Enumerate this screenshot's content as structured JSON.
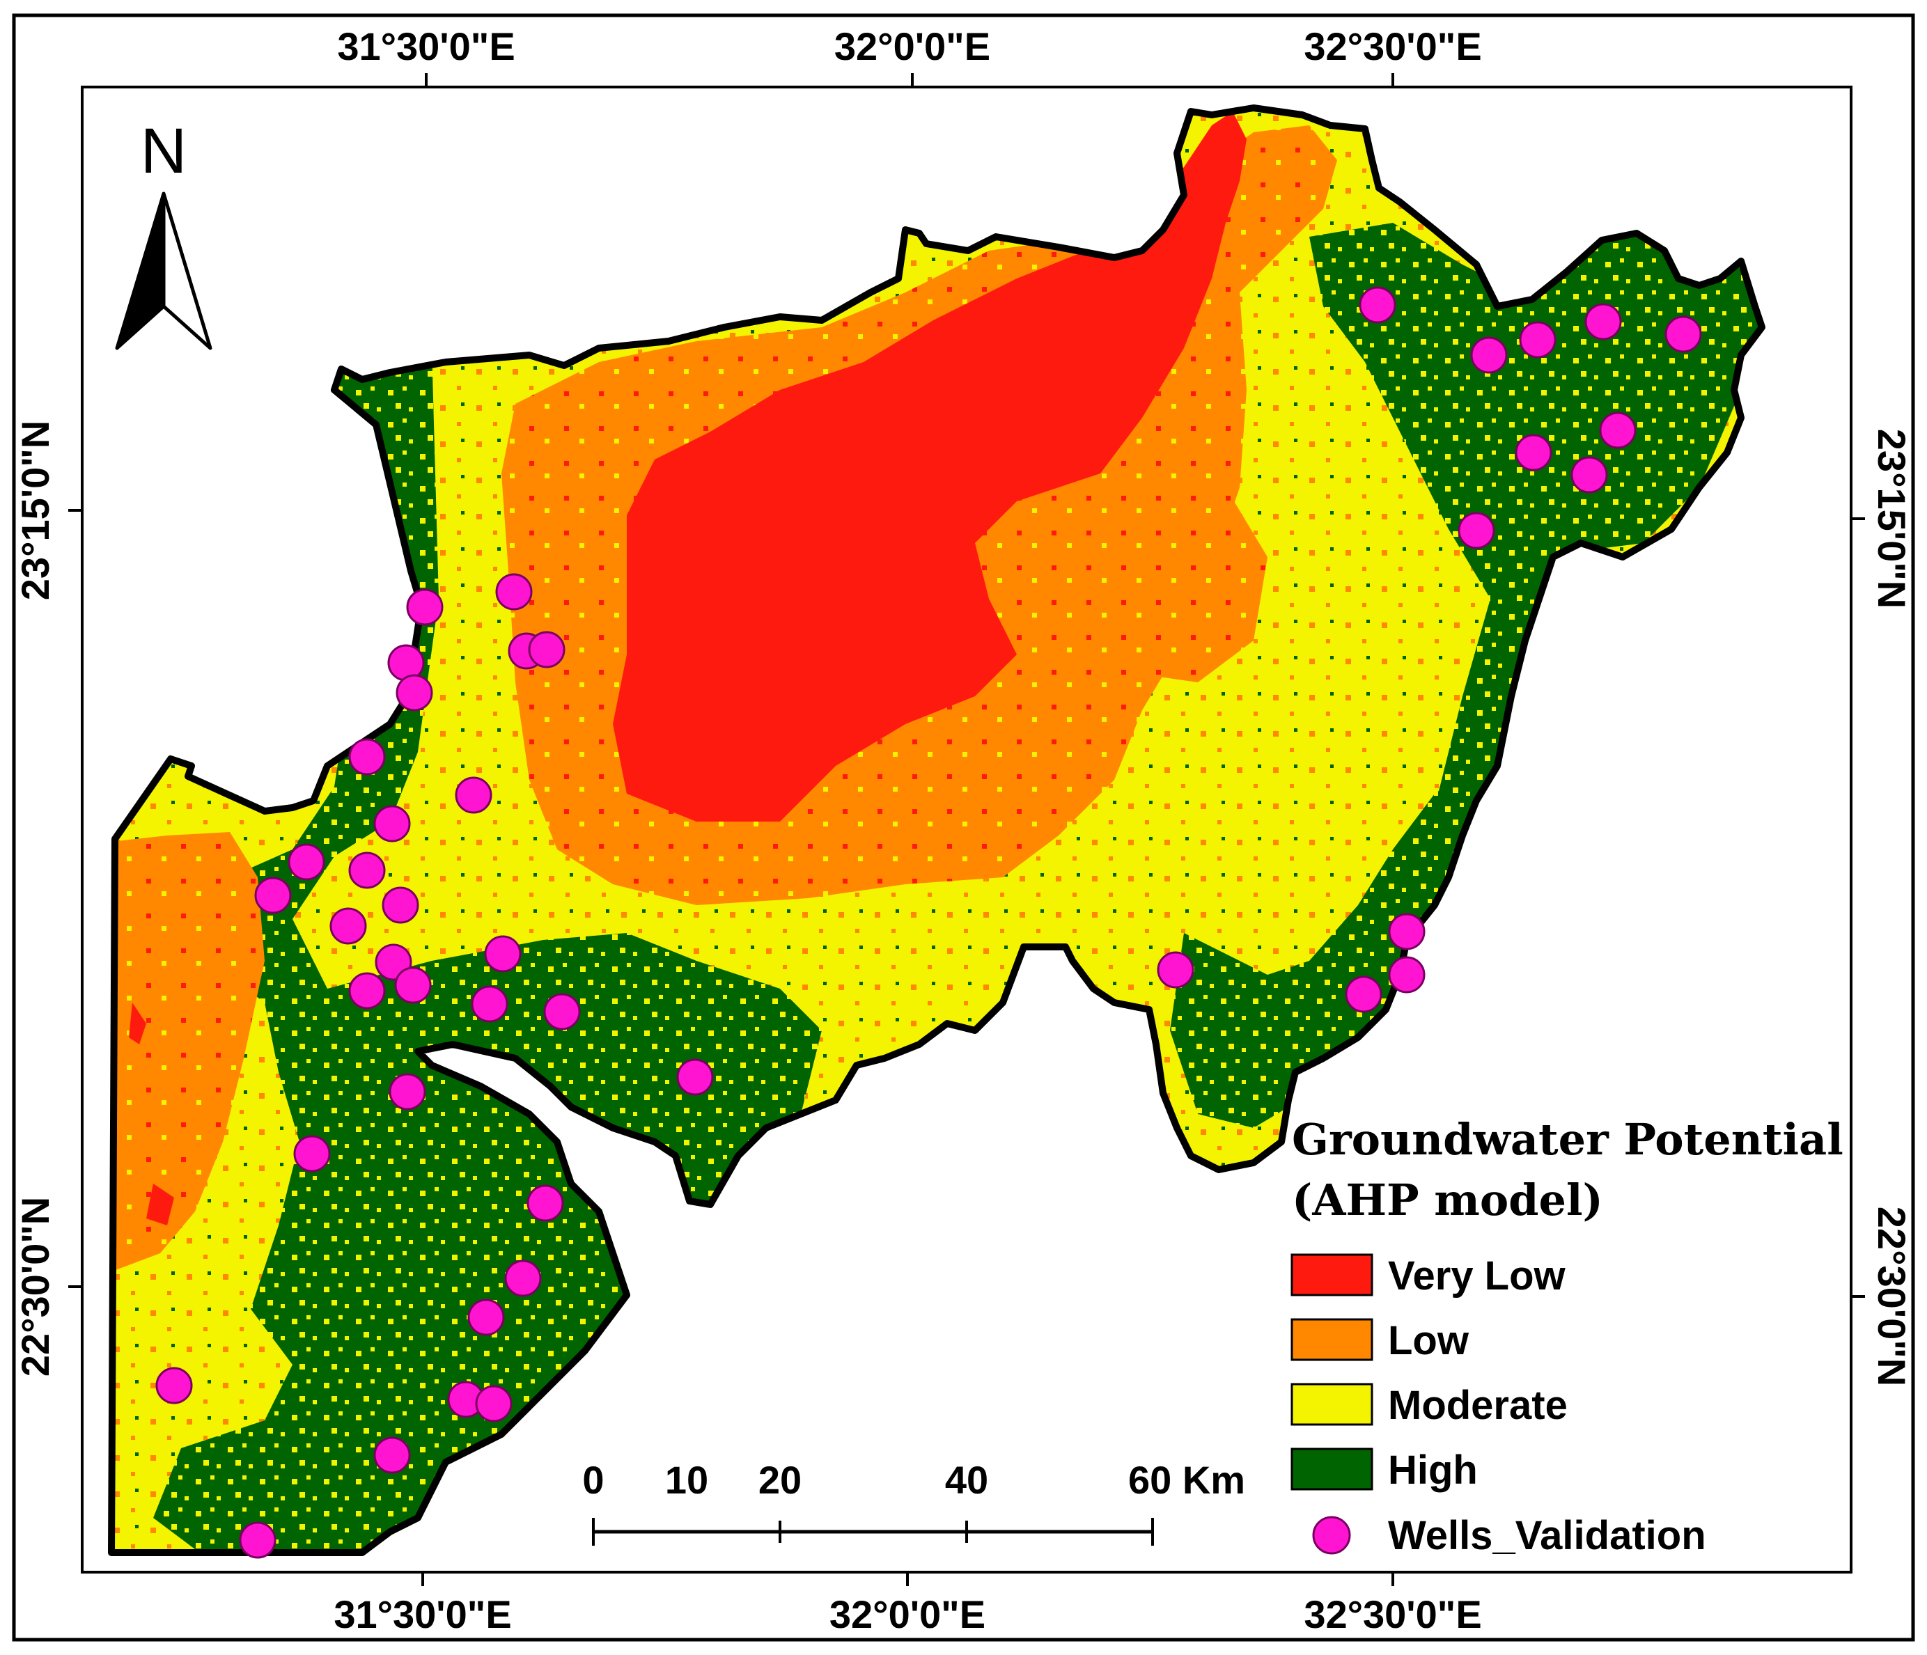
{
  "map": {
    "top_labels": [
      "31°30'0\"E",
      "32°0'0\"E",
      "32°30'0\"E"
    ],
    "bottom_labels": [
      "31°30'0\"E",
      "32°0'0\"E",
      "32°30'0\"E"
    ],
    "left_labels": [
      "23°15'0\"N",
      "22°30'0\"N"
    ],
    "right_labels": [
      "23°15'0\"N",
      "22°30'0\"N"
    ],
    "north_arrow": {
      "label": "N",
      "icon": "north-arrow-icon"
    }
  },
  "scale_bar": {
    "ticks": [
      "0",
      "10",
      "20",
      "40",
      "60 Km"
    ]
  },
  "legend": {
    "title_line1": "Groundwater Potential",
    "title_line2": "(AHP model)",
    "items": [
      {
        "label": "Very Low",
        "color": "#ff1a10"
      },
      {
        "label": "Low",
        "color": "#ff8800"
      },
      {
        "label": "Moderate",
        "color": "#f4f300"
      },
      {
        "label": "High",
        "color": "#006400"
      },
      {
        "label": "Wells_Validation",
        "color": "#ff14d2",
        "icon": "well-point-icon"
      }
    ]
  },
  "colors": {
    "very_low": "#ff1a10",
    "low": "#ff8800",
    "moderate": "#f4f300",
    "high": "#006400",
    "wells": "#ff14d2"
  }
}
